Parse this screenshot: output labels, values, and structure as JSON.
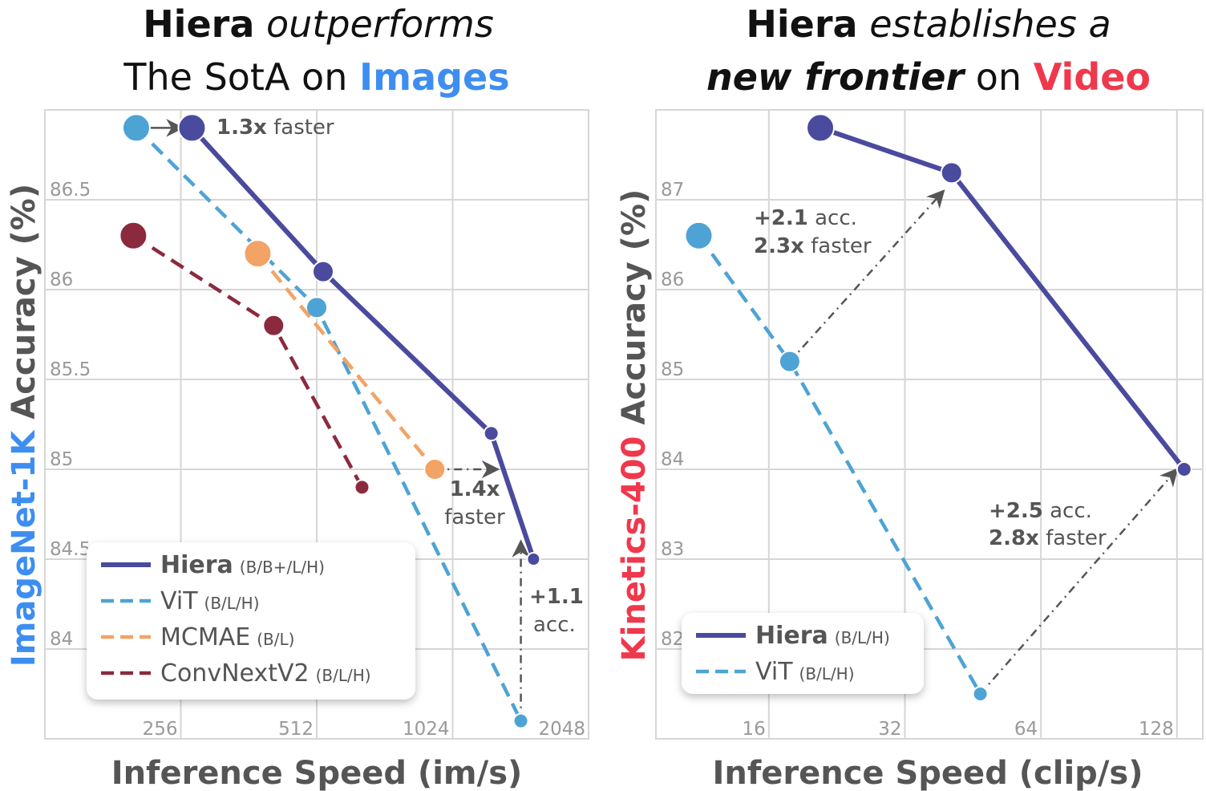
{
  "colors": {
    "hiera": "#4a4a9e",
    "vit": "#4da3d4",
    "mcmae": "#f2a365",
    "convnext": "#8b2a3e",
    "images": "#3d8ef0",
    "video": "#f0384c",
    "grid": "#d6d6d6",
    "annot": "#555555"
  },
  "left_title": {
    "l1_bold": "Hiera",
    "l1_italic": "outperforms",
    "l2_normal": "The SotA on",
    "l2_accent": "Images"
  },
  "right_title": {
    "l1_bold": "Hiera",
    "l1_italic": "establishes a",
    "l2_bolditalic": "new frontier",
    "l2_normal": "on",
    "l2_accent": "Video"
  },
  "chart_data": [
    {
      "type": "line",
      "xlabel": "Inference Speed (im/s)",
      "ylabel_accent": "ImageNet-1K",
      "ylabel": "Accuracy (%)",
      "xscale": "log2",
      "xlim": [
        128,
        2048
      ],
      "ylim": [
        83.5,
        87
      ],
      "xticks": [
        256,
        512,
        1024,
        2048
      ],
      "yticks": [
        84,
        84.5,
        85,
        85.5,
        86,
        86.5
      ],
      "grid": true,
      "legend_position": "bottom-left",
      "series": [
        {
          "name": "Hiera",
          "sub": "(B/B+/L/H)",
          "color": "hiera",
          "dashed": false,
          "x": [
            271,
            529,
            1247,
            1547
          ],
          "y": [
            86.9,
            86.1,
            85.2,
            84.5
          ]
        },
        {
          "name": "ViT",
          "sub": "(B/L/H)",
          "color": "vit",
          "dashed": true,
          "x": [
            204,
            512,
            1450
          ],
          "y": [
            86.9,
            85.9,
            83.6
          ]
        },
        {
          "name": "MCMAE",
          "sub": "(B/L)",
          "color": "mcmae",
          "dashed": true,
          "x": [
            379,
            935
          ],
          "y": [
            86.2,
            85.0
          ]
        },
        {
          "name": "ConvNextV2",
          "sub": "(B/L/H)",
          "color": "convnext",
          "dashed": true,
          "x": [
            201,
            411,
            645
          ],
          "y": [
            86.3,
            85.8,
            84.9
          ]
        }
      ],
      "annotations": [
        {
          "bold": "1.3x",
          "text": "faster",
          "from": [
            204,
            86.9
          ],
          "to": [
            258,
            86.9
          ],
          "style": "solid"
        },
        {
          "bold": "1.4x",
          "text": "faster",
          "from": [
            935,
            85.0
          ],
          "to": [
            1290,
            85.0
          ],
          "style": "dashdot"
        },
        {
          "bold": "+1.1",
          "text": "acc.",
          "from": [
            1450,
            83.6
          ],
          "to": [
            1450,
            84.6
          ],
          "style": "dashdot"
        }
      ]
    },
    {
      "type": "line",
      "xlabel": "Inference Speed (clip/s)",
      "ylabel_accent": "Kinetics-400",
      "ylabel": "Accuracy (%)",
      "xscale": "log2",
      "xlim": [
        9,
        146
      ],
      "ylim": [
        81,
        88
      ],
      "xticks": [
        16,
        32,
        64,
        128
      ],
      "yticks": [
        82,
        83,
        84,
        85,
        86,
        87
      ],
      "grid": true,
      "legend_position": "bottom-left",
      "series": [
        {
          "name": "Hiera",
          "sub": "(B/L/H)",
          "color": "hiera",
          "dashed": false,
          "x": [
            20.8,
            40.6,
            132.8
          ],
          "y": [
            87.8,
            87.3,
            84.0
          ]
        },
        {
          "name": "ViT",
          "sub": "(B/L/H)",
          "color": "vit",
          "dashed": true,
          "x": [
            11.2,
            17.8,
            47
          ],
          "y": [
            86.6,
            85.2,
            81.5
          ]
        }
      ],
      "annotations": [
        {
          "bold": "+2.1",
          "text": "acc.",
          "bold2": "2.3x",
          "text2": "faster",
          "from": [
            17.8,
            85.2
          ],
          "to": [
            39,
            87.1
          ],
          "style": "dashdot"
        },
        {
          "bold": "+2.5",
          "text": "acc.",
          "bold2": "2.8x",
          "text2": "faster",
          "from": [
            47,
            81.5
          ],
          "to": [
            128,
            84.0
          ],
          "style": "dashdot"
        }
      ]
    }
  ]
}
